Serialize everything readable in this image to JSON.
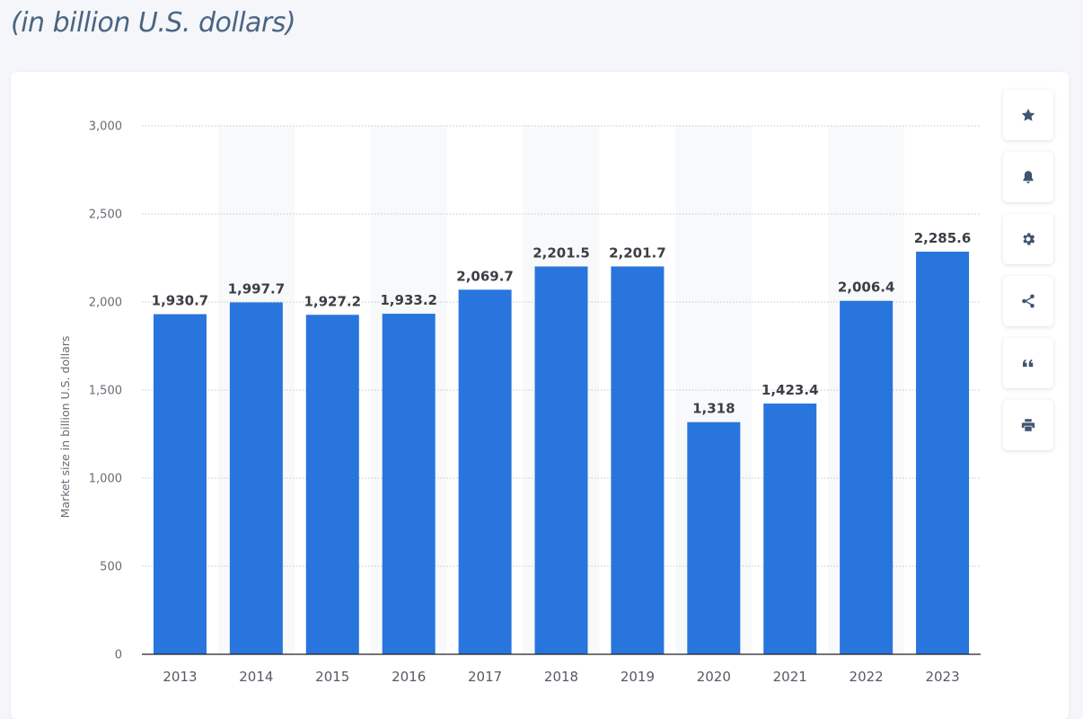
{
  "header": {
    "subtitle": "(in billion U.S. dollars)"
  },
  "toolbar": {
    "icons": [
      "star-icon",
      "bell-icon",
      "gear-icon",
      "share-icon",
      "quote-icon",
      "print-icon"
    ]
  },
  "colors": {
    "bar": "#2875dd",
    "band": "#f8f9fa",
    "grid": "#c4c8cd",
    "axis": "#222222"
  },
  "chart_data": {
    "type": "bar",
    "title": "",
    "xlabel": "",
    "ylabel": "Market size in billion U.S. dollars",
    "categories": [
      "2013",
      "2014",
      "2015",
      "2016",
      "2017",
      "2018",
      "2019",
      "2020",
      "2021",
      "2022",
      "2023"
    ],
    "values": [
      1930.7,
      1997.7,
      1927.2,
      1933.2,
      2069.7,
      2201.5,
      2201.7,
      1318,
      1423.4,
      2006.4,
      2285.6
    ],
    "value_labels": [
      "1,930.7",
      "1,997.7",
      "1,927.2",
      "1,933.2",
      "2,069.7",
      "2,201.5",
      "2,201.7",
      "1,318",
      "1,423.4",
      "2,006.4",
      "2,285.6"
    ],
    "yticks": [
      0,
      500,
      1000,
      1500,
      2000,
      2500,
      3000
    ],
    "ytick_labels": [
      "0",
      "500",
      "1,000",
      "1,500",
      "2,000",
      "2,500",
      "3,000"
    ],
    "ylim": [
      0,
      3000
    ],
    "grid": true,
    "legend": "none"
  }
}
